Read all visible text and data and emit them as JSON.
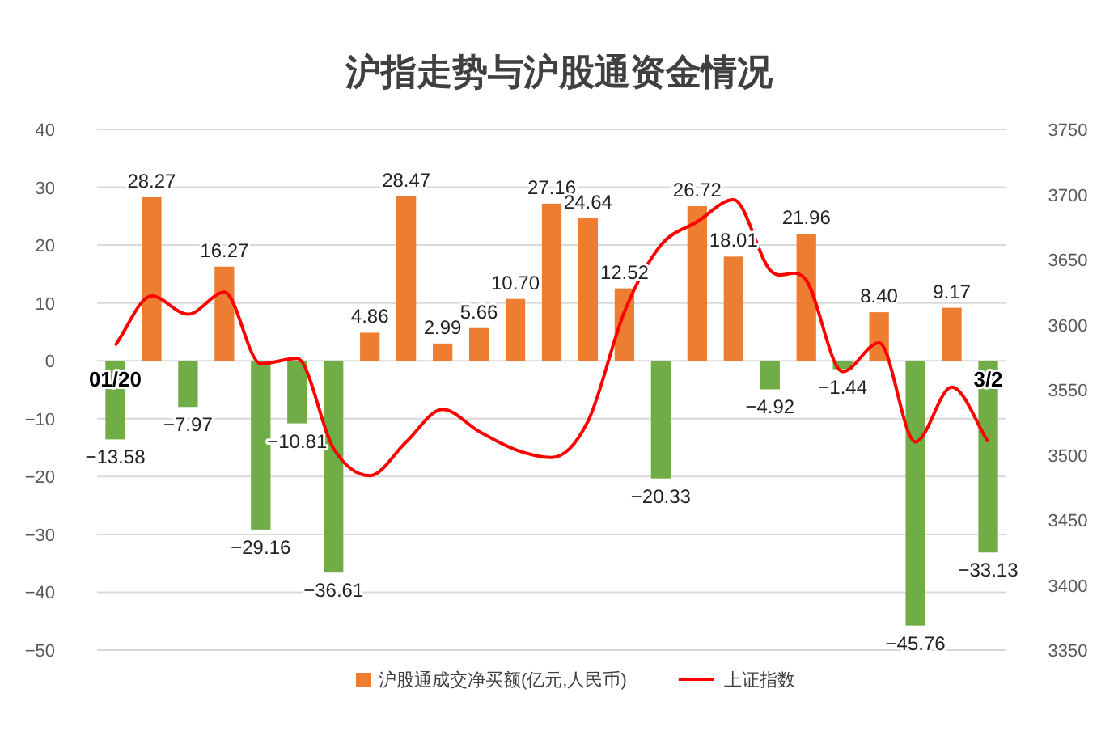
{
  "chart_data": {
    "type": "bar",
    "title": "沪指走势与沪股通资金情况",
    "categories": [
      "01/20",
      null,
      null,
      null,
      null,
      null,
      null,
      null,
      null,
      null,
      null,
      null,
      null,
      null,
      null,
      null,
      null,
      null,
      null,
      null,
      null,
      null,
      null,
      null,
      "3/2"
    ],
    "series": [
      {
        "name": "沪股通成交净买额(亿元,人民币)",
        "color": "#ed7d31",
        "colors": [
          "#70ad47",
          "#ed7d31",
          "#70ad47",
          "#ed7d31",
          "#70ad47",
          "#70ad47",
          "#70ad47",
          "#ed7d31",
          "#ed7d31",
          "#ed7d31",
          "#ed7d31",
          "#ed7d31",
          "#ed7d31",
          "#ed7d31",
          "#ed7d31",
          "#70ad47",
          "#ed7d31",
          "#ed7d31",
          "#70ad47",
          "#ed7d31",
          "#70ad47",
          "#ed7d31",
          "#70ad47",
          "#ed7d31",
          "#70ad47"
        ],
        "values": [
          -13.58,
          28.27,
          -7.97,
          16.27,
          -29.16,
          -10.81,
          -36.61,
          4.86,
          28.47,
          2.99,
          5.66,
          10.7,
          27.16,
          24.64,
          12.52,
          -20.33,
          26.72,
          18.01,
          -4.92,
          21.96,
          -1.44,
          8.4,
          -45.76,
          9.17,
          -33.13
        ],
        "value_labels": [
          "−13.58",
          "28.27",
          "−7.97",
          "16.27",
          "−29.16",
          "−10.81",
          "−36.61",
          "4.86",
          "28.47",
          "2.99",
          "5.66",
          "10.70",
          "27.16",
          "24.64",
          "12.52",
          "−20.33",
          "26.72",
          "18.01",
          "−4.92",
          "21.96",
          "−1.44",
          "8.40",
          "−45.76",
          "9.17",
          "−33.13"
        ]
      },
      {
        "name": "上证指数",
        "type": "line",
        "axis": "y2",
        "color": "#ff0000",
        "values": [
          3584,
          3622,
          3608,
          3625,
          3570,
          3574,
          3505,
          3484,
          3510,
          3535,
          3518,
          3504,
          3498,
          3526,
          3610,
          3661,
          3679,
          3696,
          3642,
          3634,
          3564,
          3586,
          3510,
          3552,
          3510
        ]
      }
    ],
    "ylim": [
      -50,
      40
    ],
    "yticks": [
      -50,
      -40,
      -30,
      -20,
      -10,
      0,
      10,
      20,
      30,
      40
    ],
    "y2lim": [
      3350,
      3750
    ],
    "y2ticks": [
      3350,
      3400,
      3450,
      3500,
      3550,
      3600,
      3650,
      3700,
      3750
    ],
    "grid": "y",
    "legend": "bottom"
  }
}
